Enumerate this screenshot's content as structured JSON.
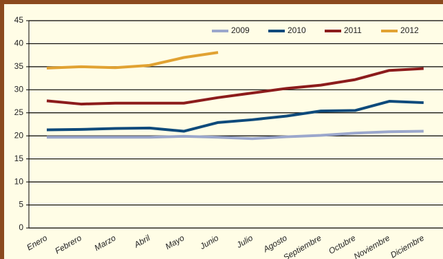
{
  "chart_data": {
    "type": "line",
    "categories": [
      "Enero",
      "Febrero",
      "Marzo",
      "Abril",
      "Mayo",
      "Junio",
      "Julio",
      "Agosto",
      "Septiembre",
      "Octubre",
      "Noviembre",
      "Diciembre"
    ],
    "series": [
      {
        "name": "2009",
        "color": "#9ba7cc",
        "values": [
          19.7,
          19.7,
          19.7,
          19.7,
          19.9,
          19.7,
          19.4,
          19.8,
          20.1,
          20.6,
          20.9,
          21.0
        ]
      },
      {
        "name": "2010",
        "color": "#0e4a7b",
        "values": [
          21.3,
          21.4,
          21.6,
          21.7,
          21.0,
          22.9,
          23.5,
          24.3,
          25.4,
          25.5,
          27.5,
          27.2
        ]
      },
      {
        "name": "2011",
        "color": "#8c1c1c",
        "values": [
          27.6,
          26.9,
          27.1,
          27.1,
          27.1,
          28.3,
          29.3,
          30.3,
          31.0,
          32.2,
          34.2,
          34.6
        ]
      },
      {
        "name": "2012",
        "color": "#e1a232",
        "values": [
          34.7,
          35.0,
          34.8,
          35.3,
          37.0,
          38.1,
          null,
          null,
          null,
          null,
          null,
          null
        ]
      }
    ],
    "ylim": [
      0,
      45
    ],
    "yticks": [
      0,
      5,
      10,
      15,
      20,
      25,
      30,
      35,
      40,
      45
    ],
    "grid": true,
    "legend": "top-right"
  }
}
